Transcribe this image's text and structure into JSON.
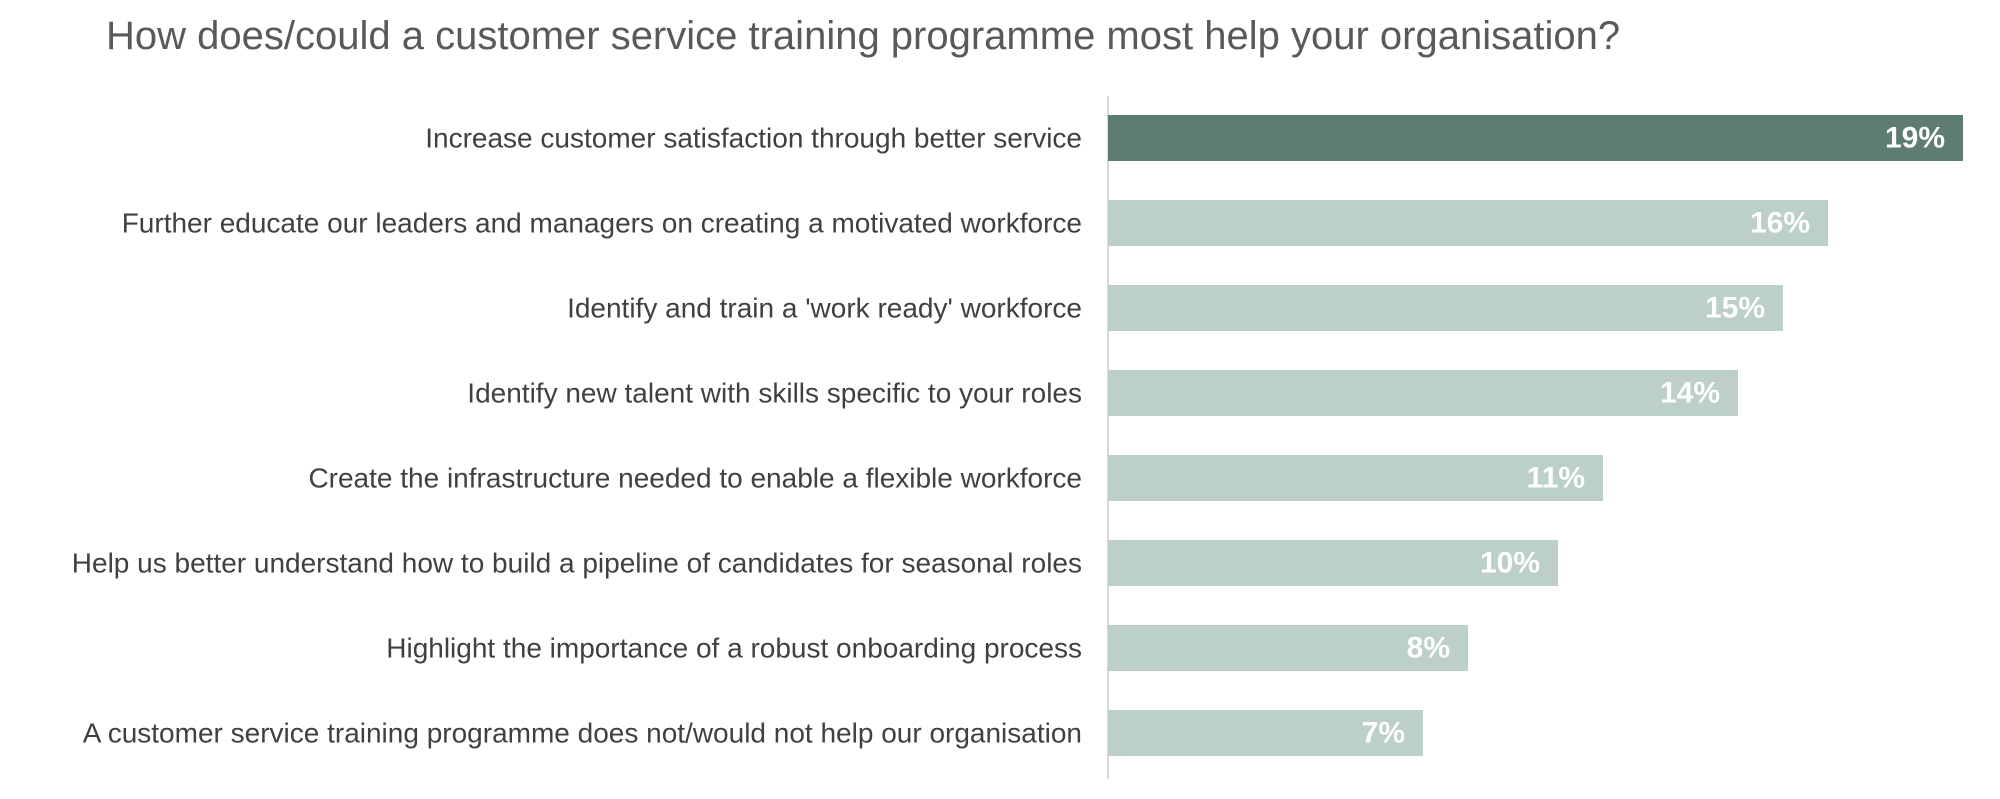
{
  "chart_data": {
    "type": "bar",
    "orientation": "horizontal",
    "title": "How does/could a customer service training programme most help your organisation?",
    "categories": [
      "Increase customer satisfaction through better service",
      "Further educate our leaders and managers on creating a motivated workforce",
      "Identify and train a 'work ready' workforce",
      "Identify new talent with skills specific to your roles",
      "Create the infrastructure needed to enable a flexible workforce",
      "Help us better understand how to build a pipeline of candidates for seasonal roles",
      "Highlight the importance of a robust onboarding process",
      "A customer service training programme does not/would not help our organisation"
    ],
    "values": [
      19,
      16,
      15,
      14,
      11,
      10,
      8,
      7
    ],
    "data_labels": [
      "19%",
      "16%",
      "15%",
      "14%",
      "11%",
      "10%",
      "8%",
      "7%"
    ],
    "unit": "%",
    "xlim": [
      0,
      19
    ],
    "grid": false,
    "legend": "none",
    "colors": {
      "highlight": "#5E7D70",
      "bar": "#BCCFC8",
      "axis": "#D9D9D9",
      "label": "#404040",
      "title": "#595959",
      "data_label": "#FFFFFF"
    }
  }
}
